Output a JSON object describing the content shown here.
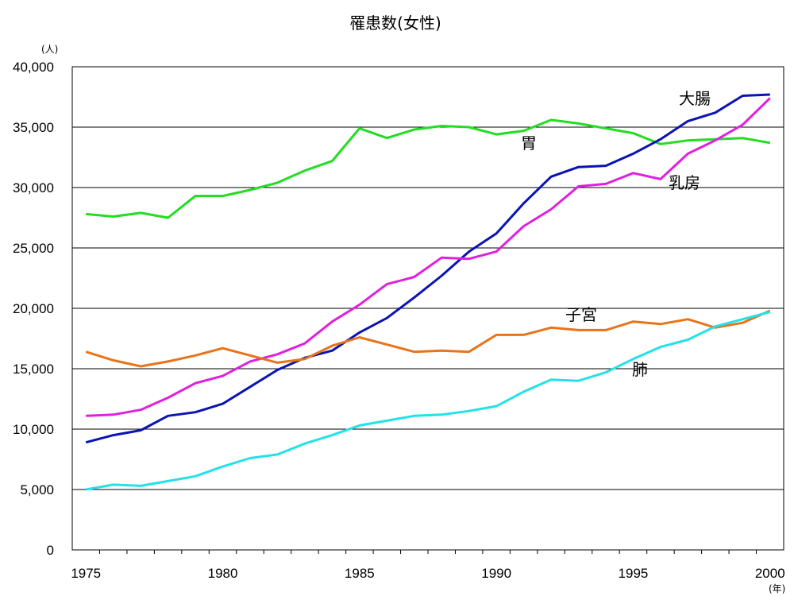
{
  "chart_data": {
    "type": "line",
    "title": "罹患数(女性)",
    "y_unit": "(人)",
    "x_unit": "(年)",
    "x": [
      1975,
      1976,
      1977,
      1978,
      1979,
      1980,
      1981,
      1982,
      1983,
      1984,
      1985,
      1986,
      1987,
      1988,
      1989,
      1990,
      1991,
      1992,
      1993,
      1994,
      1995,
      1996,
      1997,
      1998,
      1999,
      2000
    ],
    "xlim": [
      1974.5,
      2000.5
    ],
    "ylim": [
      0,
      40000
    ],
    "yticks": [
      0,
      5000,
      10000,
      15000,
      20000,
      25000,
      30000,
      35000,
      40000
    ],
    "ytick_labels": [
      "0",
      "5,000",
      "10,000",
      "15,000",
      "20,000",
      "25,000",
      "30,000",
      "35,000",
      "40,000"
    ],
    "xticks": [
      1975,
      1980,
      1985,
      1990,
      1995,
      2000
    ],
    "xtick_labels": [
      "1975",
      "1980",
      "1985",
      "1990",
      "1995",
      "2000"
    ],
    "grid": "horizontal",
    "series": [
      {
        "name": "胃",
        "color": "#22dd22",
        "values": [
          27800,
          27600,
          27900,
          27500,
          29300,
          29300,
          29800,
          30400,
          31400,
          32200,
          34900,
          34100,
          34800,
          35100,
          35000,
          34400,
          34700,
          35600,
          35300,
          34900,
          34500,
          33600,
          33900,
          34000,
          34100,
          33700
        ]
      },
      {
        "name": "大腸",
        "color": "#0a14b4",
        "values": [
          8900,
          9500,
          9900,
          11100,
          11400,
          12100,
          13500,
          14900,
          15900,
          16500,
          18000,
          19200,
          20900,
          22700,
          24700,
          26200,
          28700,
          30900,
          31700,
          31800,
          32800,
          34000,
          35500,
          36200,
          37600,
          37700
        ]
      },
      {
        "name": "乳房",
        "color": "#e020e0",
        "values": [
          11100,
          11200,
          11600,
          12600,
          13800,
          14400,
          15600,
          16200,
          17100,
          18900,
          20300,
          22000,
          22600,
          24200,
          24100,
          24700,
          26800,
          28200,
          30100,
          30300,
          31200,
          30700,
          32800,
          33900,
          35200,
          37400
        ]
      },
      {
        "name": "子宮",
        "color": "#e8741a",
        "values": [
          16400,
          15700,
          15200,
          15600,
          16100,
          16700,
          16100,
          15500,
          15800,
          16900,
          17600,
          17000,
          16400,
          16500,
          16400,
          17800,
          17800,
          18400,
          18200,
          18200,
          18900,
          18700,
          19100,
          18400,
          18800,
          19800
        ]
      },
      {
        "name": "肺",
        "color": "#22e2e8",
        "values": [
          5000,
          5400,
          5300,
          5700,
          6100,
          6900,
          7600,
          7900,
          8800,
          9500,
          10300,
          10700,
          11100,
          11200,
          11500,
          11900,
          13100,
          14100,
          14000,
          14700,
          15800,
          16800,
          17400,
          18500,
          19100,
          19700
        ]
      }
    ]
  }
}
